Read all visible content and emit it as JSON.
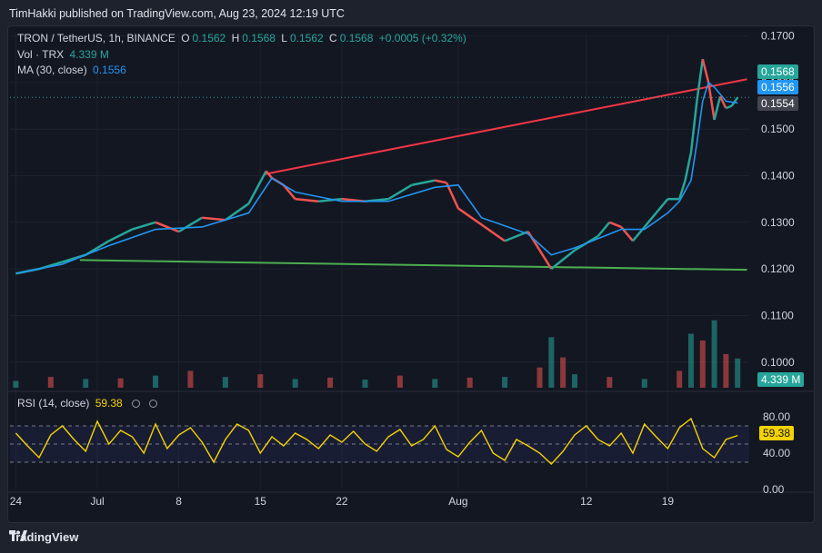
{
  "header": {
    "text": "TimHakki published on TradingView.com, Aug 23, 2024 12:19 UTC"
  },
  "legend": {
    "symbol": "TRON / TetherUS, 1h, BINANCE",
    "o_label": "O",
    "o": "0.1562",
    "h_label": "H",
    "h": "0.1568",
    "l_label": "L",
    "l": "0.1562",
    "c_label": "C",
    "c": "0.1568",
    "change": "+0.0005 (+0.32%)",
    "vol_label": "Vol · TRX",
    "vol": "4.339 M",
    "ma_label": "MA (30, close)",
    "ma": "0.1556"
  },
  "rsi_legend": {
    "label": "RSI (14, close)",
    "value": "59.38"
  },
  "price_tags": {
    "last": "0.1568",
    "ma": "0.1556",
    "prev": "0.1554",
    "volume": "4.339 M",
    "rsi": "59.38"
  },
  "colors": {
    "up": "#26a69a",
    "down": "#ef5350",
    "ma": "#2196f3",
    "rsi": "#f5d300",
    "resistance": "#f23645",
    "support": "#4caf50"
  },
  "footer": {
    "brand": "TradingView"
  },
  "chart_data": [
    {
      "type": "line",
      "title": "TRON / TetherUS, 1h, BINANCE",
      "ylim": [
        0.0945,
        0.1705
      ],
      "y_ticks": [
        0.17,
        0.16,
        0.15,
        0.14,
        0.13,
        0.12,
        0.11,
        0.1
      ],
      "y_tick_labels": [
        "0.1700",
        "0.1600",
        "0.1500",
        "0.1400",
        "0.1300",
        "0.1200",
        "0.1100",
        "0.1000"
      ],
      "x_ticks": [
        1,
        8,
        15,
        22,
        29,
        37,
        44,
        51,
        57
      ],
      "x_tick_labels": [
        "24",
        "Jul",
        "8",
        "15",
        "22",
        "Aug",
        "12",
        "19"
      ],
      "x_tick_values": [
        0,
        7,
        14,
        21,
        28,
        38,
        49,
        56
      ],
      "xlim": [
        -0.5,
        63
      ],
      "series": [
        {
          "name": "Price (close)",
          "x": [
            0,
            2,
            4,
            6,
            8,
            10,
            12,
            14,
            16,
            18,
            20,
            21.5,
            22,
            23,
            24,
            26,
            28,
            30,
            32,
            34,
            36,
            37,
            38,
            40,
            42,
            44,
            46,
            48,
            50,
            51,
            52,
            53,
            54,
            55,
            56,
            57,
            57.5,
            58,
            58.5,
            59,
            59.5,
            60,
            60.5,
            61,
            61.5,
            62
          ],
          "values": [
            0.119,
            0.12,
            0.1215,
            0.123,
            0.126,
            0.1285,
            0.13,
            0.128,
            0.131,
            0.1305,
            0.134,
            0.141,
            0.1395,
            0.138,
            0.135,
            0.1345,
            0.135,
            0.1345,
            0.135,
            0.138,
            0.139,
            0.1385,
            0.133,
            0.1295,
            0.126,
            0.128,
            0.12,
            0.124,
            0.127,
            0.13,
            0.129,
            0.126,
            0.129,
            0.132,
            0.135,
            0.135,
            0.139,
            0.145,
            0.156,
            0.165,
            0.16,
            0.152,
            0.157,
            0.1545,
            0.155,
            0.1568
          ]
        },
        {
          "name": "MA (30, close)",
          "x": [
            0,
            4,
            8,
            12,
            16,
            20,
            22,
            24,
            28,
            32,
            36,
            38,
            40,
            44,
            46,
            48,
            52,
            54,
            56,
            57,
            58,
            58.5,
            59,
            59.5,
            60,
            61,
            62
          ],
          "values": [
            0.119,
            0.121,
            0.125,
            0.1285,
            0.129,
            0.132,
            0.1395,
            0.1365,
            0.1345,
            0.1345,
            0.1375,
            0.138,
            0.131,
            0.1275,
            0.123,
            0.1245,
            0.1285,
            0.1285,
            0.132,
            0.1345,
            0.139,
            0.147,
            0.156,
            0.16,
            0.159,
            0.156,
            0.1556
          ]
        },
        {
          "name": "Resistance trendline",
          "x": [
            21.3,
            62.8
          ],
          "values": [
            0.1403,
            0.1607
          ]
        },
        {
          "name": "Support trendline",
          "x": [
            5.5,
            62.8
          ],
          "values": [
            0.1219,
            0.1198
          ]
        }
      ],
      "hline": 0.1568
    },
    {
      "type": "bar",
      "title": "Vol · TRX",
      "x": [
        0,
        3,
        6,
        9,
        12,
        15,
        18,
        21,
        24,
        27,
        30,
        33,
        36,
        39,
        42,
        45,
        46,
        47,
        48,
        51,
        54,
        57,
        58,
        59,
        60,
        61,
        62
      ],
      "values": [
        1.0,
        1.6,
        1.3,
        1.4,
        1.8,
        2.5,
        1.6,
        2.0,
        1.3,
        1.5,
        1.2,
        1.8,
        1.3,
        1.5,
        1.6,
        3.0,
        7.5,
        4.5,
        2.0,
        1.6,
        1.3,
        2.5,
        8.0,
        7.0,
        10.0,
        5.0,
        4.339
      ],
      "ylim": [
        0,
        10.5
      ]
    },
    {
      "type": "line",
      "title": "RSI (14, close)",
      "ylim": [
        0,
        100
      ],
      "y_ticks": [
        80,
        40,
        0
      ],
      "y_tick_labels": [
        "80.00",
        "40.00",
        "0.00"
      ],
      "bands": [
        30,
        70
      ],
      "midline": 50,
      "x": [
        0,
        1,
        2,
        3,
        4,
        5,
        6,
        7,
        8,
        9,
        10,
        11,
        12,
        13,
        14,
        15,
        16,
        17,
        18,
        19,
        20,
        21,
        22,
        23,
        24,
        25,
        26,
        27,
        28,
        29,
        30,
        31,
        32,
        33,
        34,
        35,
        36,
        37,
        38,
        39,
        40,
        41,
        42,
        43,
        44,
        45,
        46,
        47,
        48,
        49,
        50,
        51,
        52,
        53,
        54,
        55,
        56,
        57,
        58,
        59,
        60,
        61,
        62
      ],
      "values": [
        62,
        48,
        35,
        60,
        70,
        55,
        42,
        75,
        50,
        65,
        58,
        40,
        72,
        45,
        60,
        68,
        52,
        30,
        55,
        72,
        65,
        40,
        58,
        48,
        62,
        55,
        45,
        60,
        52,
        64,
        50,
        42,
        58,
        66,
        48,
        55,
        70,
        44,
        36,
        52,
        65,
        40,
        32,
        55,
        48,
        40,
        28,
        42,
        60,
        70,
        55,
        48,
        62,
        40,
        72,
        58,
        45,
        68,
        78,
        45,
        35,
        55,
        59.38
      ]
    }
  ]
}
